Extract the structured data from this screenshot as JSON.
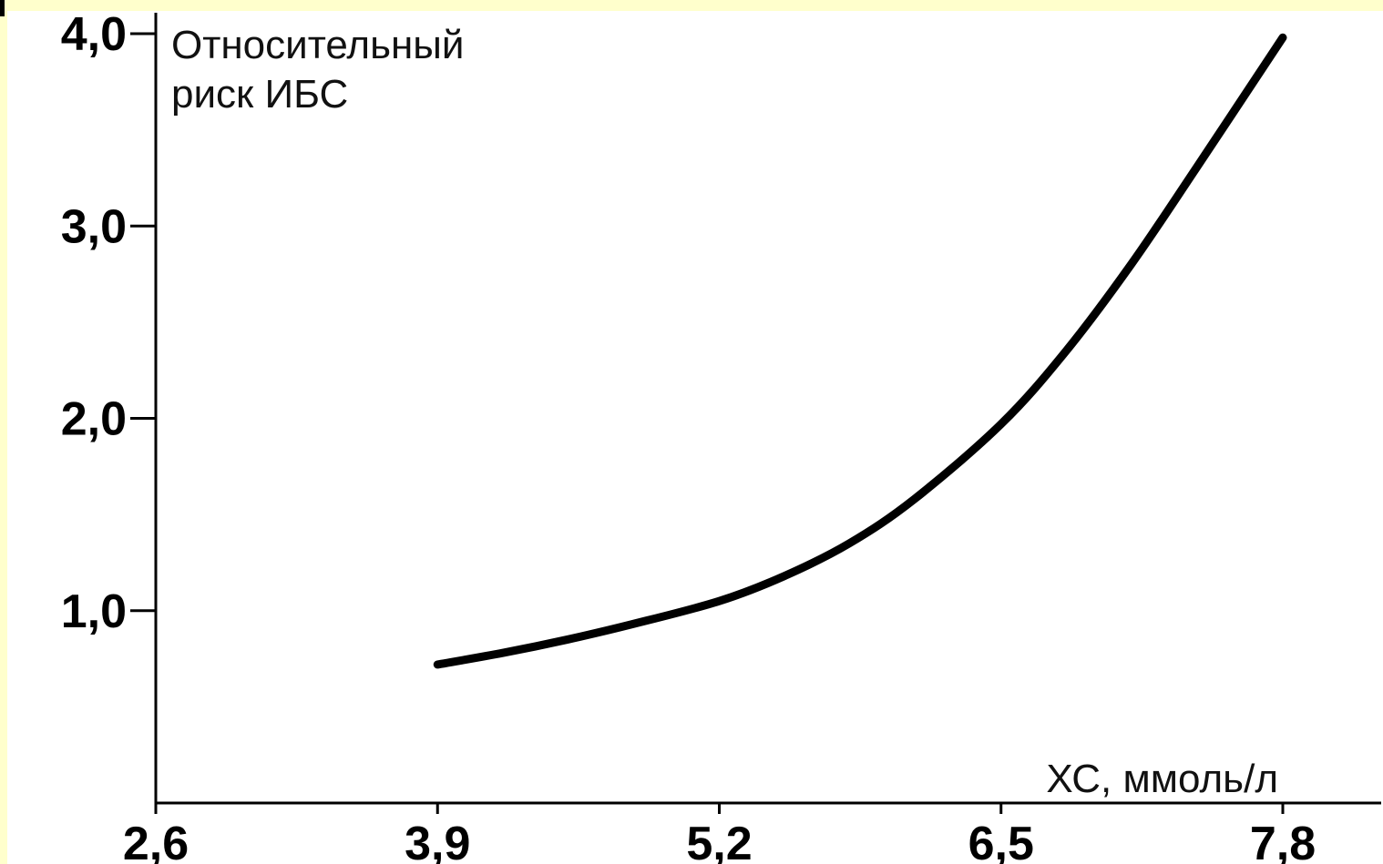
{
  "chart_data": {
    "type": "line",
    "ylabel_lines": [
      "Относительный",
      "риск ИБС"
    ],
    "xlabel": "ХС, ммоль/л",
    "x_ticks": [
      "2,6",
      "3,9",
      "5,2",
      "6,5",
      "7,8"
    ],
    "y_ticks": [
      "1,0",
      "2,0",
      "3,0",
      "4,0"
    ],
    "xlim": [
      2.6,
      7.8
    ],
    "ylim": [
      0,
      4.0
    ],
    "series": [
      {
        "x": [
          3.9,
          4.2,
          4.5,
          4.8,
          5.2,
          5.5,
          5.8,
          6.1,
          6.5,
          6.8,
          7.1,
          7.4,
          7.8
        ],
        "y": [
          0.72,
          0.78,
          0.85,
          0.93,
          1.05,
          1.18,
          1.35,
          1.58,
          1.97,
          2.35,
          2.8,
          3.3,
          3.98
        ]
      }
    ]
  },
  "colors": {
    "background": "#ffffcc",
    "plot_background": "#ffffff",
    "line": "#000000"
  }
}
